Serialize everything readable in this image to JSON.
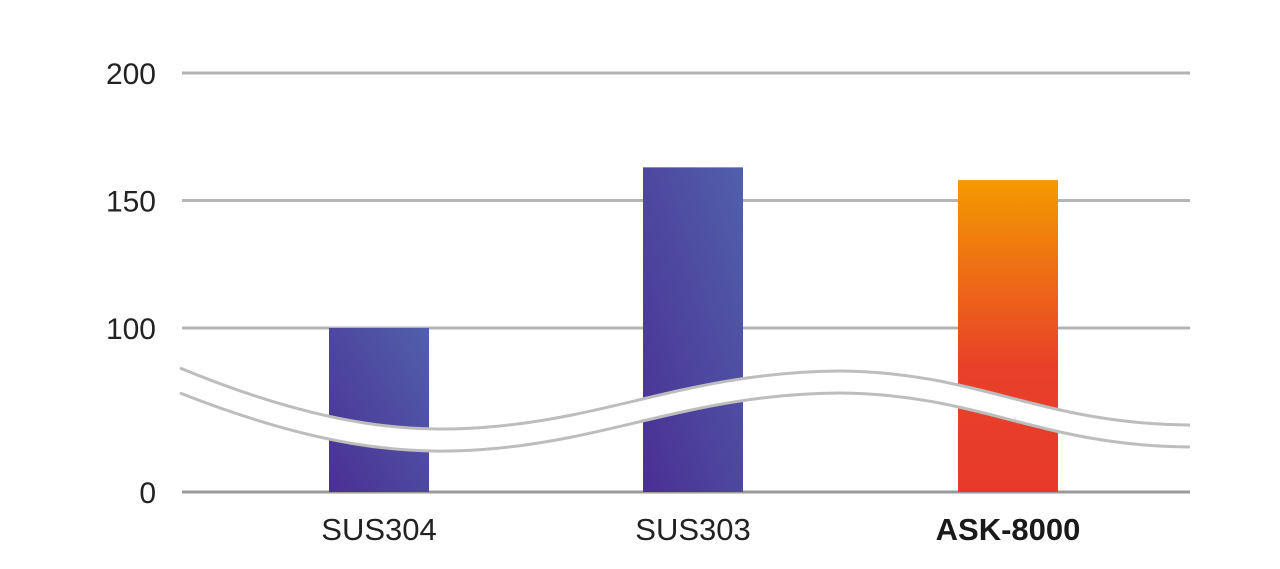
{
  "chart_data": {
    "type": "bar",
    "categories": [
      "SUS304",
      "SUS303",
      "ASK-8000"
    ],
    "values": [
      100,
      163,
      158
    ],
    "highlight_category": "ASK-8000",
    "y_ticks": [
      "0",
      "100",
      "150",
      "200"
    ],
    "y_tick_values": [
      0,
      100,
      150,
      200
    ],
    "axis_break": {
      "between": [
        0,
        100
      ]
    },
    "grid": true,
    "colors": {
      "standard_bar": [
        "#4a2f94",
        "#5160ab"
      ],
      "highlight_bar": [
        "#e83a2a",
        "#f39a00"
      ],
      "grid": "#b4b4b4"
    }
  }
}
